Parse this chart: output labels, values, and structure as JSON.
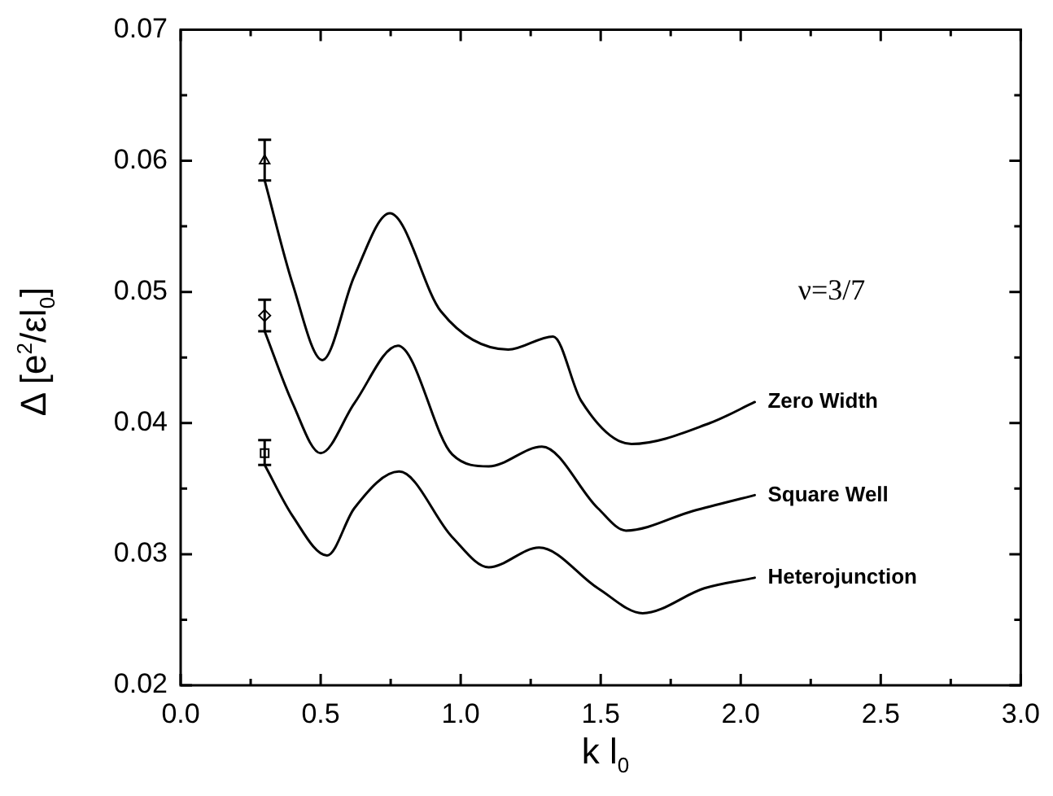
{
  "chart_data": {
    "type": "line",
    "xlabel": "k l$_{0}$",
    "ylabel": "Δ [e$^{2}$/εl$_{0}$]",
    "xlim": [
      0,
      3
    ],
    "ylim": [
      0.02,
      0.07
    ],
    "xticks": [
      {
        "value": 0,
        "label": "0.0"
      },
      {
        "value": 0.25,
        "label": null
      },
      {
        "value": 0.5,
        "label": "0.5"
      },
      {
        "value": 0.75,
        "label": null
      },
      {
        "value": 1,
        "label": "1.0"
      },
      {
        "value": 1.25,
        "label": null
      },
      {
        "value": 1.5,
        "label": "1.5"
      },
      {
        "value": 1.75,
        "label": null
      },
      {
        "value": 2,
        "label": "2.0"
      },
      {
        "value": 2.25,
        "label": null
      },
      {
        "value": 2.5,
        "label": "2.5"
      },
      {
        "value": 2.75,
        "label": null
      },
      {
        "value": 3,
        "label": "3.0"
      }
    ],
    "yticks": [
      0.02,
      {
        "value": 0.025,
        "label": null
      },
      0.03,
      {
        "value": 0.035,
        "label": null
      },
      0.04,
      {
        "value": 0.045,
        "label": null
      },
      0.05,
      {
        "value": 0.055,
        "label": null
      },
      0.06,
      {
        "value": 0.065,
        "label": null
      },
      0.07
    ],
    "annotations": [
      "ν=3/7"
    ],
    "series": [
      {
        "name": "Zero Width",
        "type": "line",
        "color": "#000000",
        "marker": "none",
        "x": [
          0.3,
          0.4,
          0.506,
          0.62,
          0.747,
          0.93,
          1.17,
          1.33,
          1.43,
          1.61,
          1.89,
          2.05
        ],
        "values": [
          0.0585,
          0.0506,
          0.0448,
          0.0512,
          0.056,
          0.0485,
          0.0456,
          0.0466,
          0.0417,
          0.0384,
          0.04,
          0.0416
        ]
      },
      {
        "name": "Square Well",
        "type": "line",
        "color": "#000000",
        "marker": "none",
        "x": [
          0.3,
          0.4,
          0.5,
          0.62,
          0.776,
          0.97,
          1.1,
          1.29,
          1.49,
          1.59,
          1.83,
          2.05
        ],
        "values": [
          0.047,
          0.0415,
          0.0377,
          0.0415,
          0.0459,
          0.0376,
          0.0367,
          0.0382,
          0.0335,
          0.0318,
          0.0333,
          0.0345
        ]
      },
      {
        "name": "Heterojunction",
        "type": "line",
        "color": "#000000",
        "marker": "none",
        "x": [
          0.3,
          0.4,
          0.523,
          0.62,
          0.78,
          0.97,
          1.1,
          1.28,
          1.49,
          1.65,
          1.87,
          2.05
        ],
        "values": [
          0.0368,
          0.0329,
          0.0299,
          0.0335,
          0.0363,
          0.0313,
          0.029,
          0.0305,
          0.0274,
          0.0255,
          0.0274,
          0.0282
        ]
      },
      {
        "type": "scatter",
        "color": "#000000",
        "marker": "triangle",
        "x": [
          0.3
        ],
        "values": [
          0.06
        ],
        "errors": [
          [
            0.0585,
            0.0616
          ]
        ]
      },
      {
        "type": "scatter",
        "color": "#000000",
        "marker": "diamond",
        "x": [
          0.3
        ],
        "values": [
          0.0482
        ],
        "errors": [
          [
            0.047,
            0.0494
          ]
        ]
      },
      {
        "type": "scatter",
        "color": "#000000",
        "marker": "square",
        "x": [
          0.3
        ],
        "values": [
          0.0377
        ],
        "errors": [
          [
            0.0368,
            0.0387
          ]
        ]
      }
    ]
  }
}
